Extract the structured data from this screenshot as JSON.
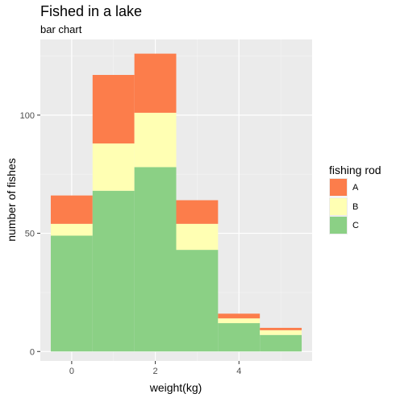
{
  "chart_data": {
    "type": "bar",
    "stacked": true,
    "title": "Fished in a lake",
    "subtitle": "bar chart",
    "xlabel": "weight(kg)",
    "ylabel": "number of fishes",
    "bin_width": 1,
    "x_bin_centers": [
      0,
      1,
      2,
      3,
      4,
      5
    ],
    "xlim": [
      -0.75,
      5.75
    ],
    "ylim": [
      -4,
      132
    ],
    "x_ticks": [
      0,
      2,
      4
    ],
    "y_ticks": [
      0,
      50,
      100
    ],
    "legend": {
      "title": "fishing rod",
      "position": "right"
    },
    "series": [
      {
        "name": "C",
        "color": "#8BD085",
        "values": [
          49,
          68,
          78,
          43,
          12,
          7
        ]
      },
      {
        "name": "B",
        "color": "#FFFFB3",
        "values": [
          5,
          20,
          23,
          11,
          2,
          2
        ]
      },
      {
        "name": "A",
        "color": "#FC7D4B",
        "values": [
          12,
          29,
          25,
          10,
          2,
          1
        ]
      }
    ],
    "legend_entries": [
      {
        "name": "A",
        "color": "#FC7D4B"
      },
      {
        "name": "B",
        "color": "#FFFFB3"
      },
      {
        "name": "C",
        "color": "#8BD085"
      }
    ]
  }
}
